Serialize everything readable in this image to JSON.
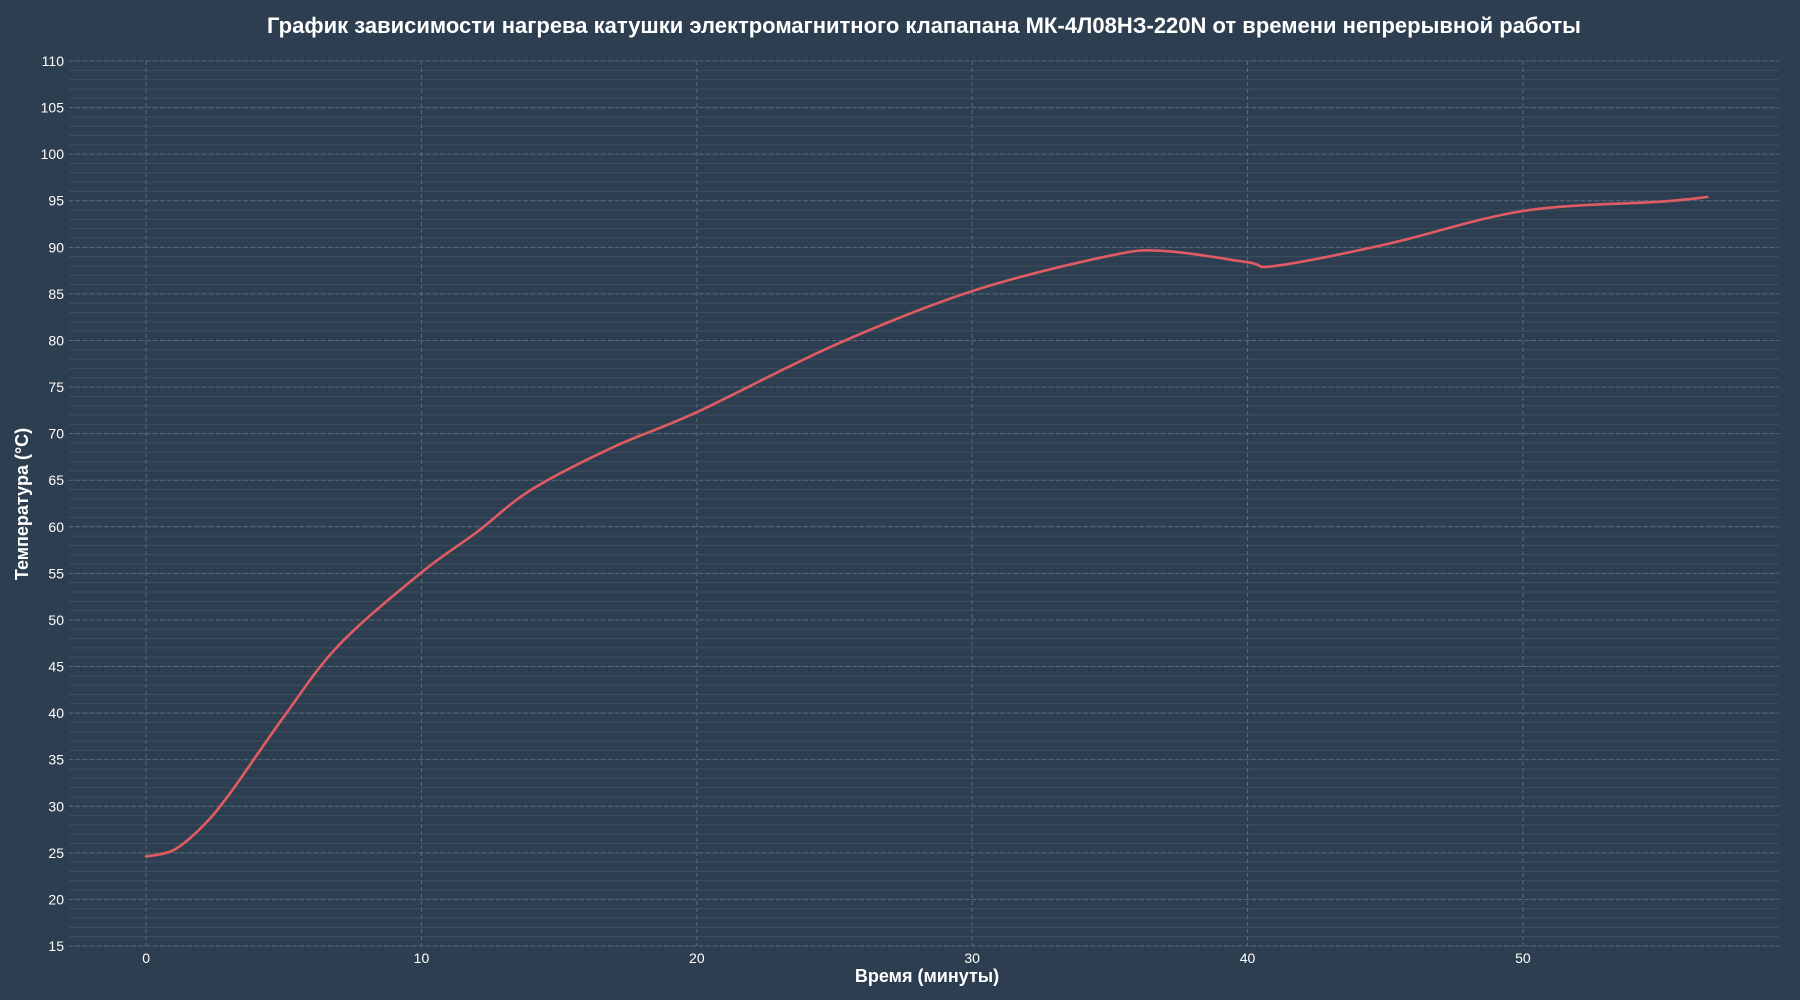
{
  "chart_data": {
    "type": "line",
    "title": "График зависимости нагрева катушки электромагнитного клапапана МК-4Л08НЗ-220N от времени непрерывной работы",
    "xlabel": "Время (минуты)",
    "ylabel": "Температура (°C)",
    "xlim": [
      -2.8,
      59.3
    ],
    "ylim": [
      15,
      110
    ],
    "xticks": [
      "0",
      "10",
      "20",
      "30",
      "40",
      "50"
    ],
    "yticks": [
      "15",
      "20",
      "25",
      "30",
      "35",
      "40",
      "45",
      "50",
      "55",
      "60",
      "65",
      "70",
      "75",
      "80",
      "85",
      "90",
      "95",
      "100",
      "105",
      "110"
    ],
    "grid": true,
    "minor_grid_step": 1,
    "colors": {
      "background": "#2d3e50",
      "line": "#e05c62",
      "grid": "#5a6a7a"
    },
    "series": [
      {
        "x": [
          0,
          1,
          2,
          3,
          5,
          7,
          10,
          12,
          14,
          17,
          20,
          25,
          30,
          35,
          37,
          40,
          41,
          45,
          50,
          55,
          56.7
        ],
        "y": [
          24.6,
          25.3,
          27.7,
          31.2,
          39.6,
          47.3,
          55.1,
          59.4,
          64.0,
          68.6,
          72.3,
          79.5,
          85.3,
          89.1,
          89.6,
          88.4,
          88.0,
          90.3,
          93.9,
          94.9,
          95.4
        ]
      }
    ]
  }
}
